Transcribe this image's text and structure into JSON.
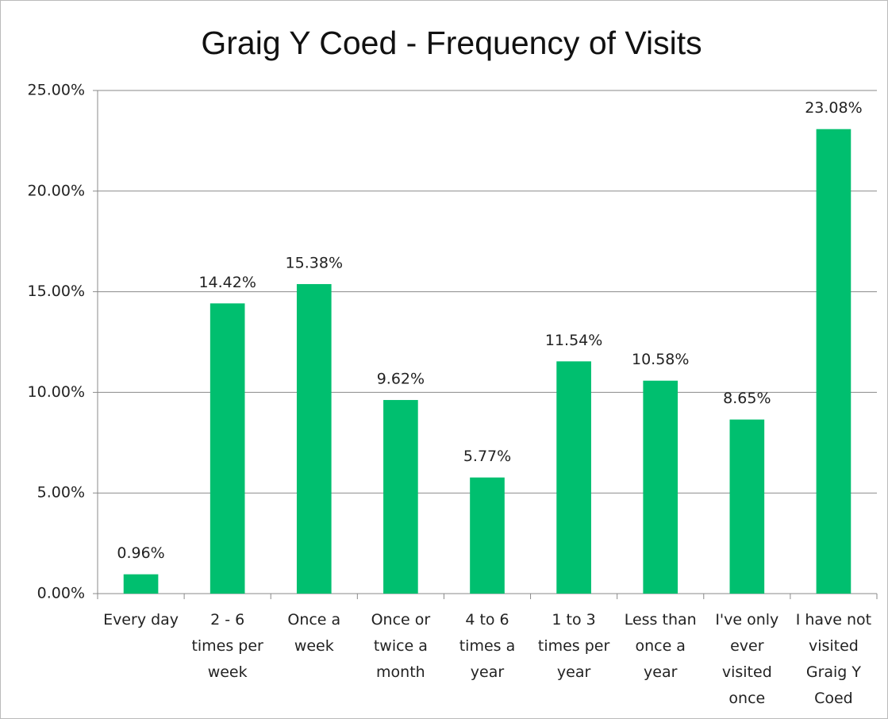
{
  "chart_data": {
    "type": "bar",
    "title": "Graig Y Coed - Frequency of Visits",
    "categories": [
      "Every day",
      "2 - 6 times per week",
      "Once a week",
      "Once or twice a month",
      "4 to 6 times a year",
      "1 to 3 times per year",
      "Less than once a year",
      "I've only ever visited once",
      "I have not visited Graig Y Coed"
    ],
    "values": [
      0.96,
      14.42,
      15.38,
      9.62,
      5.77,
      11.54,
      10.58,
      8.65,
      23.08
    ],
    "value_labels": [
      "0.96%",
      "14.42%",
      "15.38%",
      "9.62%",
      "5.77%",
      "11.54%",
      "10.58%",
      "8.65%",
      "23.08%"
    ],
    "color": "#00bf6f",
    "ylim": [
      0,
      25
    ],
    "yticks": [
      {
        "value": 0,
        "label": "0.00%"
      },
      {
        "value": 5,
        "label": "5.00%"
      },
      {
        "value": 10,
        "label": "10.00%"
      },
      {
        "value": 15,
        "label": "15.00%"
      },
      {
        "value": 20,
        "label": "20.00%"
      },
      {
        "value": 25,
        "label": "25.00%"
      }
    ],
    "grid": true
  }
}
